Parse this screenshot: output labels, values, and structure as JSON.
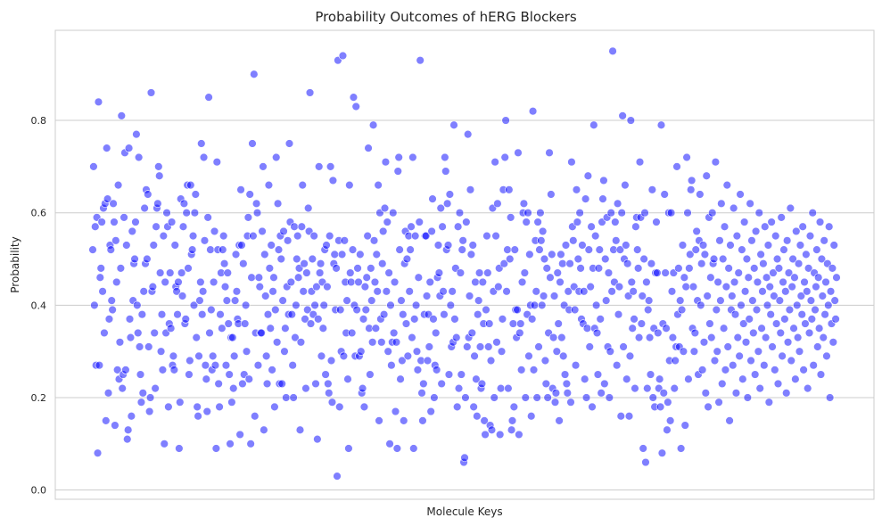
{
  "chart_data": {
    "type": "scatter",
    "title": "Probability Outcomes of hERG Blockers",
    "xlabel": "Molecule Keys",
    "ylabel": "Probability",
    "x_ticks_visible": false,
    "ylim": [
      -0.02,
      0.995
    ],
    "yticks": [
      "0.0",
      "0.2",
      "0.4",
      "0.6",
      "0.8"
    ],
    "ytick_values": [
      0.0,
      0.2,
      0.4,
      0.6,
      0.8
    ],
    "grid": "horizontal",
    "point_color": "#0000ff",
    "point_opacity": 0.5,
    "n_points": 876,
    "y": [
      0.52,
      0.7,
      0.4,
      0.57,
      0.27,
      0.59,
      0.08,
      0.84,
      0.27,
      0.46,
      0.48,
      0.58,
      0.43,
      0.61,
      0.34,
      0.62,
      0.15,
      0.74,
      0.63,
      0.21,
      0.37,
      0.53,
      0.52,
      0.41,
      0.39,
      0.62,
      0.58,
      0.14,
      0.54,
      0.45,
      0.26,
      0.66,
      0.24,
      0.32,
      0.48,
      0.81,
      0.22,
      0.25,
      0.59,
      0.73,
      0.26,
      0.53,
      0.11,
      0.13,
      0.74,
      0.37,
      0.33,
      0.16,
      0.56,
      0.41,
      0.49,
      0.5,
      0.58,
      0.77,
      0.4,
      0.34,
      0.72,
      0.31,
      0.25,
      0.19,
      0.38,
      0.21,
      0.43,
      0.61,
      0.49,
      0.65,
      0.5,
      0.64,
      0.31,
      0.17,
      0.2,
      0.86,
      0.43,
      0.44,
      0.53,
      0.34,
      0.22,
      0.57,
      0.61,
      0.62,
      0.7,
      0.68,
      0.47,
      0.3,
      0.38,
      0.26,
      0.55,
      0.1,
      0.45,
      0.34,
      0.6,
      0.57,
      0.18,
      0.36,
      0.47,
      0.35,
      0.58,
      0.27,
      0.29,
      0.26,
      0.53,
      0.44,
      0.43,
      0.38,
      0.45,
      0.09,
      0.19,
      0.63,
      0.47,
      0.42,
      0.57,
      0.62,
      0.36,
      0.37,
      0.6,
      0.66,
      0.48,
      0.25,
      0.28,
      0.66,
      0.51,
      0.52,
      0.55,
      0.4,
      0.6,
      0.64,
      0.33,
      0.18,
      0.16,
      0.29,
      0.41,
      0.45,
      0.75,
      0.38,
      0.43,
      0.72,
      0.54,
      0.27,
      0.24,
      0.17,
      0.59,
      0.85,
      0.34,
      0.52,
      0.39,
      0.26,
      0.29,
      0.45,
      0.56,
      0.27,
      0.09,
      0.71,
      0.52,
      0.23,
      0.18,
      0.38,
      0.47,
      0.35,
      0.52,
      0.55,
      0.49,
      0.44,
      0.27,
      0.41,
      0.47,
      0.36,
      0.25,
      0.1,
      0.33,
      0.19,
      0.33,
      0.22,
      0.29,
      0.41,
      0.51,
      0.43,
      0.37,
      0.36,
      0.53,
      0.12,
      0.65,
      0.53,
      0.23,
      0.49,
      0.25,
      0.36,
      0.4,
      0.3,
      0.55,
      0.59,
      0.24,
      0.64,
      0.1,
      0.46,
      0.75,
      0.55,
      0.9,
      0.16,
      0.34,
      0.62,
      0.6,
      0.27,
      0.46,
      0.44,
      0.34,
      0.34,
      0.56,
      0.7,
      0.13,
      0.51,
      0.42,
      0.29,
      0.23,
      0.38,
      0.66,
      0.48,
      0.35,
      0.53,
      0.26,
      0.43,
      0.46,
      0.18,
      0.39,
      0.72,
      0.32,
      0.62,
      0.52,
      0.23,
      0.55,
      0.5,
      0.23,
      0.41,
      0.56,
      0.3,
      0.35,
      0.2,
      0.44,
      0.54,
      0.38,
      0.75,
      0.58,
      0.45,
      0.38,
      0.27,
      0.2,
      0.57,
      0.33,
      0.4,
      0.5,
      0.55,
      0.46,
      0.48,
      0.13,
      0.32,
      0.57,
      0.66,
      0.43,
      0.49,
      0.37,
      0.22,
      0.47,
      0.39,
      0.61,
      0.56,
      0.86,
      0.36,
      0.43,
      0.5,
      0.38,
      0.55,
      0.4,
      0.23,
      0.44,
      0.11,
      0.37,
      0.7,
      0.47,
      0.49,
      0.29,
      0.45,
      0.35,
      0.4,
      0.52,
      0.25,
      0.53,
      0.44,
      0.23,
      0.21,
      0.55,
      0.7,
      0.28,
      0.19,
      0.67,
      0.49,
      0.51,
      0.39,
      0.48,
      0.03,
      0.93,
      0.54,
      0.18,
      0.39,
      0.3,
      0.51,
      0.94,
      0.29,
      0.54,
      0.45,
      0.34,
      0.41,
      0.24,
      0.09,
      0.66,
      0.47,
      0.45,
      0.34,
      0.52,
      0.85,
      0.4,
      0.29,
      0.83,
      0.39,
      0.48,
      0.45,
      0.29,
      0.51,
      0.3,
      0.21,
      0.22,
      0.37,
      0.18,
      0.44,
      0.39,
      0.46,
      0.55,
      0.74,
      0.35,
      0.25,
      0.48,
      0.41,
      0.32,
      0.79,
      0.54,
      0.45,
      0.35,
      0.51,
      0.43,
      0.66,
      0.15,
      0.6,
      0.37,
      0.32,
      0.49,
      0.56,
      0.38,
      0.61,
      0.71,
      0.43,
      0.58,
      0.3,
      0.47,
      0.1,
      0.4,
      0.27,
      0.32,
      0.6,
      0.34,
      0.45,
      0.17,
      0.32,
      0.09,
      0.69,
      0.72,
      0.52,
      0.24,
      0.41,
      0.28,
      0.38,
      0.15,
      0.49,
      0.56,
      0.36,
      0.5,
      0.29,
      0.55,
      0.43,
      0.52,
      0.57,
      0.33,
      0.72,
      0.09,
      0.37,
      0.55,
      0.4,
      0.3,
      0.26,
      0.46,
      0.58,
      0.93,
      0.28,
      0.21,
      0.15,
      0.23,
      0.38,
      0.55,
      0.55,
      0.42,
      0.28,
      0.38,
      0.31,
      0.45,
      0.17,
      0.56,
      0.63,
      0.37,
      0.2,
      0.27,
      0.34,
      0.26,
      0.46,
      0.53,
      0.47,
      0.42,
      0.61,
      0.23,
      0.57,
      0.43,
      0.38,
      0.72,
      0.69,
      0.52,
      0.62,
      0.53,
      0.25,
      0.64,
      0.4,
      0.31,
      0.43,
      0.32,
      0.79,
      0.37,
      0.48,
      0.33,
      0.18,
      0.57,
      0.22,
      0.6,
      0.47,
      0.25,
      0.52,
      0.54,
      0.06,
      0.07,
      0.2,
      0.58,
      0.31,
      0.77,
      0.33,
      0.42,
      0.65,
      0.51,
      0.34,
      0.53,
      0.18,
      0.29,
      0.45,
      0.24,
      0.16,
      0.38,
      0.41,
      0.47,
      0.31,
      0.22,
      0.23,
      0.45,
      0.36,
      0.15,
      0.12,
      0.39,
      0.55,
      0.47,
      0.31,
      0.36,
      0.14,
      0.28,
      0.13,
      0.61,
      0.43,
      0.2,
      0.71,
      0.55,
      0.32,
      0.62,
      0.44,
      0.48,
      0.12,
      0.22,
      0.3,
      0.37,
      0.65,
      0.49,
      0.72,
      0.8,
      0.43,
      0.52,
      0.22,
      0.65,
      0.5,
      0.59,
      0.13,
      0.15,
      0.36,
      0.18,
      0.52,
      0.39,
      0.33,
      0.39,
      0.73,
      0.12,
      0.34,
      0.36,
      0.26,
      0.45,
      0.6,
      0.62,
      0.47,
      0.2,
      0.58,
      0.38,
      0.6,
      0.29,
      0.51,
      0.4,
      0.16,
      0.37,
      0.82,
      0.26,
      0.4,
      0.54,
      0.43,
      0.2,
      0.58,
      0.31,
      0.52,
      0.6,
      0.54,
      0.4,
      0.56,
      0.42,
      0.5,
      0.28,
      0.23,
      0.48,
      0.2,
      0.34,
      0.73,
      0.46,
      0.64,
      0.51,
      0.22,
      0.33,
      0.42,
      0.19,
      0.21,
      0.3,
      0.47,
      0.36,
      0.15,
      0.45,
      0.51,
      0.33,
      0.49,
      0.29,
      0.4,
      0.25,
      0.53,
      0.23,
      0.21,
      0.43,
      0.39,
      0.49,
      0.19,
      0.71,
      0.57,
      0.54,
      0.44,
      0.39,
      0.27,
      0.65,
      0.58,
      0.5,
      0.43,
      0.6,
      0.48,
      0.37,
      0.53,
      0.36,
      0.43,
      0.24,
      0.63,
      0.2,
      0.35,
      0.68,
      0.52,
      0.31,
      0.44,
      0.57,
      0.18,
      0.48,
      0.79,
      0.35,
      0.55,
      0.4,
      0.34,
      0.25,
      0.48,
      0.52,
      0.37,
      0.21,
      0.58,
      0.63,
      0.67,
      0.23,
      0.5,
      0.41,
      0.59,
      0.31,
      0.47,
      0.2,
      0.3,
      0.6,
      0.43,
      0.95,
      0.52,
      0.45,
      0.58,
      0.54,
      0.27,
      0.62,
      0.38,
      0.44,
      0.52,
      0.16,
      0.6,
      0.81,
      0.31,
      0.5,
      0.66,
      0.53,
      0.24,
      0.49,
      0.42,
      0.16,
      0.29,
      0.8,
      0.45,
      0.35,
      0.43,
      0.37,
      0.22,
      0.57,
      0.59,
      0.52,
      0.48,
      0.33,
      0.71,
      0.59,
      0.36,
      0.42,
      0.09,
      0.5,
      0.6,
      0.06,
      0.45,
      0.22,
      0.39,
      0.41,
      0.33,
      0.25,
      0.49,
      0.65,
      0.2,
      0.35,
      0.18,
      0.47,
      0.58,
      0.47,
      0.34,
      0.22,
      0.24,
      0.18,
      0.79,
      0.08,
      0.36,
      0.21,
      0.64,
      0.47,
      0.35,
      0.13,
      0.19,
      0.6,
      0.28,
      0.15,
      0.6,
      0.43,
      0.33,
      0.47,
      0.22,
      0.28,
      0.31,
      0.7,
      0.38,
      0.48,
      0.31,
      0.41,
      0.09,
      0.39,
      0.53,
      0.3,
      0.46,
      0.14,
      0.44,
      0.72,
      0.6,
      0.24,
      0.48,
      0.51,
      0.65,
      0.67,
      0.35,
      0.44,
      0.3,
      0.34,
      0.52,
      0.56,
      0.41,
      0.25,
      0.54,
      0.64,
      0.4,
      0.49,
      0.26,
      0.53,
      0.32,
      0.51,
      0.21,
      0.68,
      0.42,
      0.18,
      0.59,
      0.36,
      0.46,
      0.33,
      0.6,
      0.49,
      0.5,
      0.28,
      0.71,
      0.39,
      0.3,
      0.45,
      0.19,
      0.54,
      0.41,
      0.62,
      0.23,
      0.5,
      0.35,
      0.57,
      0.26,
      0.44,
      0.66,
      0.31,
      0.48,
      0.15,
      0.53,
      0.39,
      0.42,
      0.27,
      0.61,
      0.45,
      0.38,
      0.21,
      0.55,
      0.33,
      0.47,
      0.29,
      0.64,
      0.4,
      0.52,
      0.24,
      0.36,
      0.58,
      0.43,
      0.32,
      0.5,
      0.2,
      0.46,
      0.37,
      0.62,
      0.28,
      0.54,
      0.41,
      0.34,
      0.48,
      0.25,
      0.56,
      0.39,
      0.45,
      0.3,
      0.6,
      0.22,
      0.51,
      0.35,
      0.43,
      0.49,
      0.27,
      0.57,
      0.33,
      0.46,
      0.4,
      0.53,
      0.19,
      0.44,
      0.38,
      0.58,
      0.31,
      0.47,
      0.42,
      0.26,
      0.55,
      0.36,
      0.5,
      0.23,
      0.48,
      0.41,
      0.34,
      0.59,
      0.29,
      0.45,
      0.52,
      0.37,
      0.43,
      0.21,
      0.54,
      0.32,
      0.47,
      0.39,
      0.61,
      0.28,
      0.44,
      0.5,
      0.35,
      0.46,
      0.24,
      0.56,
      0.4,
      0.33,
      0.49,
      0.3,
      0.53,
      0.42,
      0.38,
      0.57,
      0.26,
      0.45,
      0.36,
      0.51,
      0.43,
      0.22,
      0.48,
      0.34,
      0.55,
      0.41,
      0.37,
      0.6,
      0.27,
      0.47,
      0.39,
      0.44,
      0.52,
      0.31,
      0.46,
      0.35,
      0.58,
      0.25,
      0.5,
      0.42,
      0.33,
      0.54,
      0.38,
      0.45,
      0.29,
      0.49,
      0.4,
      0.57,
      0.2,
      0.43,
      0.36,
      0.48,
      0.32,
      0.53,
      0.41,
      0.37,
      0.46
    ]
  }
}
